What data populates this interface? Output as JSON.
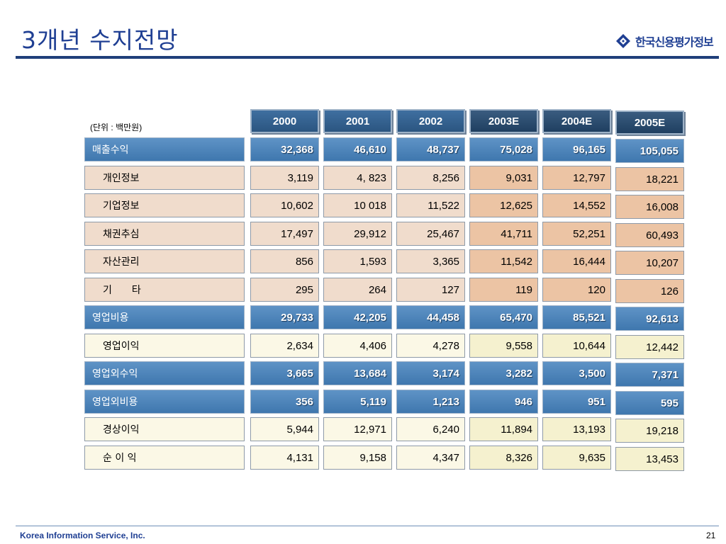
{
  "title": "3개년 수지전망",
  "logo_text": "한국신용평가정보",
  "unit": "(단위 : 백만원)",
  "footer": {
    "company": "Korea Information Service, Inc.",
    "page": "21"
  },
  "headers": [
    "2000",
    "2001",
    "2002",
    "2003E",
    "2004E",
    "2005E"
  ],
  "rows": [
    {
      "label": "매출수익",
      "kind": "main",
      "values": [
        "32,368",
        "46,610",
        "48,737",
        "75,028",
        "96,165",
        "105,055"
      ]
    },
    {
      "label": "개인정보",
      "kind": "sub-pink",
      "values": [
        "3,119",
        "4, 823",
        "8,256",
        "9,031",
        "12,797",
        "18,221"
      ]
    },
    {
      "label": "기업정보",
      "kind": "sub-pink",
      "values": [
        "10,602",
        "10 018",
        "11,522",
        "12,625",
        "14,552",
        "16,008"
      ]
    },
    {
      "label": "채권추심",
      "kind": "sub-pink",
      "values": [
        "17,497",
        "29,912",
        "25,467",
        "41,711",
        "52,251",
        "60,493"
      ]
    },
    {
      "label": "자산관리",
      "kind": "sub-pink",
      "values": [
        "856",
        "1,593",
        "3,365",
        "11,542",
        "16,444",
        "10,207"
      ]
    },
    {
      "label": "기　　타",
      "kind": "sub-pink",
      "values": [
        "295",
        "264",
        "127",
        "119",
        "120",
        "126"
      ]
    },
    {
      "label": "영업비용",
      "kind": "main",
      "values": [
        "29,733",
        "42,205",
        "44,458",
        "65,470",
        "85,521",
        "92,613"
      ]
    },
    {
      "label": "영업이익",
      "kind": "sub-cream",
      "values": [
        "2,634",
        "4,406",
        "4,278",
        "9,558",
        "10,644",
        "12,442"
      ]
    },
    {
      "label": "영업외수익",
      "kind": "main",
      "values": [
        "3,665",
        "13,684",
        "3,174",
        "3,282",
        "3,500",
        "7,371"
      ]
    },
    {
      "label": "영업외비용",
      "kind": "main",
      "values": [
        "356",
        "5,119",
        "1,213",
        "946",
        "951",
        "595"
      ]
    },
    {
      "label": "경상이익",
      "kind": "sub-cream",
      "values": [
        "5,944",
        "12,971",
        "6,240",
        "11,894",
        "13,193",
        "19,218"
      ]
    },
    {
      "label": "순 이 익",
      "kind": "sub-cream",
      "values": [
        "4,131",
        "9,158",
        "4,347",
        "8,326",
        "9,635",
        "13,453"
      ]
    }
  ],
  "colors": {
    "title": "#1f3f93",
    "header": "#2b5580",
    "main_row": "#4f86bd",
    "sub_pink": "#f0dccc",
    "sub_pink_estimate": "#ecc4a4",
    "sub_cream": "#fbf8e6",
    "sub_cream_estimate": "#f5f1cf"
  }
}
